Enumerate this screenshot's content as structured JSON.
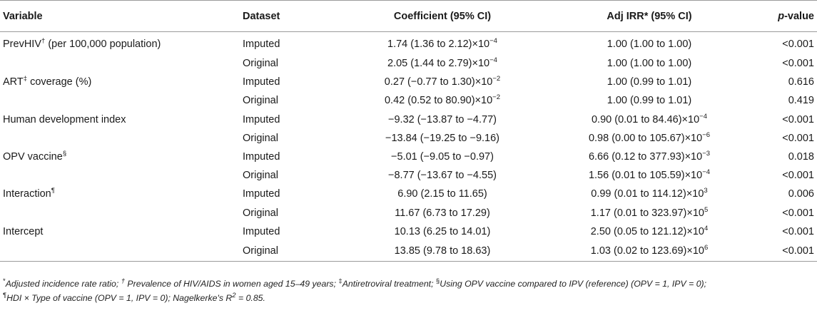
{
  "headers": {
    "variable": "Variable",
    "dataset": "Dataset",
    "coefficient": "Coefficient (95% CI)",
    "irr": "Adj IRR* (95% CI)",
    "pvalue_italic": "p",
    "pvalue_rest": "-value"
  },
  "rows": [
    {
      "var": "PrevHIV",
      "var_sup": "†",
      "var_suffix": " (per 100,000 population)",
      "dataset": "Imputed",
      "coef": "1.74 (1.36 to 2.12)×10",
      "coef_exp": "−4",
      "irr": "1.00 (1.00 to 1.00)",
      "irr_exp": "",
      "p": "<0.001"
    },
    {
      "var": "",
      "var_sup": "",
      "var_suffix": "",
      "dataset": "Original",
      "coef": "2.05 (1.44 to 2.79)×10",
      "coef_exp": "−4",
      "irr": "1.00 (1.00 to 1.00)",
      "irr_exp": "",
      "p": "<0.001"
    },
    {
      "var": "ART",
      "var_sup": "‡",
      "var_suffix": " coverage (%)",
      "dataset": "Imputed",
      "coef": "0.27 (−0.77 to 1.30)×10",
      "coef_exp": "−2",
      "irr": "1.00 (0.99 to 1.01)",
      "irr_exp": "",
      "p": "0.616"
    },
    {
      "var": "",
      "var_sup": "",
      "var_suffix": "",
      "dataset": "Original",
      "coef": "0.42 (0.52 to 80.90)×10",
      "coef_exp": "−2",
      "irr": "1.00 (0.99 to 1.01)",
      "irr_exp": "",
      "p": "0.419"
    },
    {
      "var": "Human development index",
      "var_sup": "",
      "var_suffix": "",
      "dataset": "Imputed",
      "coef": "−9.32 (−13.87 to −4.77)",
      "coef_exp": "",
      "irr": "0.90 (0.01 to 84.46)×10",
      "irr_exp": "−4",
      "p": "<0.001"
    },
    {
      "var": "",
      "var_sup": "",
      "var_suffix": "",
      "dataset": "Original",
      "coef": "−13.84 (−19.25 to −9.16)",
      "coef_exp": "",
      "irr": "0.98 (0.00 to 105.67)×10",
      "irr_exp": "−6",
      "p": "<0.001"
    },
    {
      "var": "OPV vaccine",
      "var_sup": "§",
      "var_suffix": "",
      "dataset": "Imputed",
      "coef": "−5.01 (−9.05 to −0.97)",
      "coef_exp": "",
      "irr": "6.66 (0.12 to 377.93)×10",
      "irr_exp": "−3",
      "p": "0.018"
    },
    {
      "var": "",
      "var_sup": "",
      "var_suffix": "",
      "dataset": "Original",
      "coef": "−8.77 (−13.67 to −4.55)",
      "coef_exp": "",
      "irr": "1.56 (0.01 to 105.59)×10",
      "irr_exp": "−4",
      "p": "<0.001"
    },
    {
      "var": "Interaction",
      "var_sup": "¶",
      "var_suffix": "",
      "dataset": "Imputed",
      "coef": "6.90 (2.15 to 11.65)",
      "coef_exp": "",
      "irr": "0.99 (0.01 to 114.12)×10",
      "irr_exp": "3",
      "p": "0.006"
    },
    {
      "var": "",
      "var_sup": "",
      "var_suffix": "",
      "dataset": "Original",
      "coef": "11.67 (6.73 to 17.29)",
      "coef_exp": "",
      "irr": "1.17 (0.01 to 323.97)×10",
      "irr_exp": "5",
      "p": "<0.001"
    },
    {
      "var": "Intercept",
      "var_sup": "",
      "var_suffix": "",
      "dataset": "Imputed",
      "coef": "10.13 (6.25 to 14.01)",
      "coef_exp": "",
      "irr": "2.50 (0.05 to 121.12)×10",
      "irr_exp": "4",
      "p": "<0.001"
    },
    {
      "var": "",
      "var_sup": "",
      "var_suffix": "",
      "dataset": "Original",
      "coef": "13.85 (9.78 to 18.63)",
      "coef_exp": "",
      "irr": "1.03 (0.02 to 123.69)×10",
      "irr_exp": "6",
      "p": "<0.001"
    }
  ],
  "footnote": {
    "m1": "*",
    "t1": "Adjusted incidence rate ratio; ",
    "m2": "†",
    "t2": " Prevalence of HIV/AIDS in women aged 15–49 years; ",
    "m3": "‡",
    "t3": "Antiretroviral treatment; ",
    "m4": "§",
    "t4": "Using OPV vaccine compared to IPV (reference) (OPV = 1, IPV = 0);",
    "m5": "¶",
    "t5": "HDI × Type of vaccine (OPV = 1, IPV = 0); Nagelkerke's R",
    "m6": "2",
    "t6": " = 0.85."
  }
}
